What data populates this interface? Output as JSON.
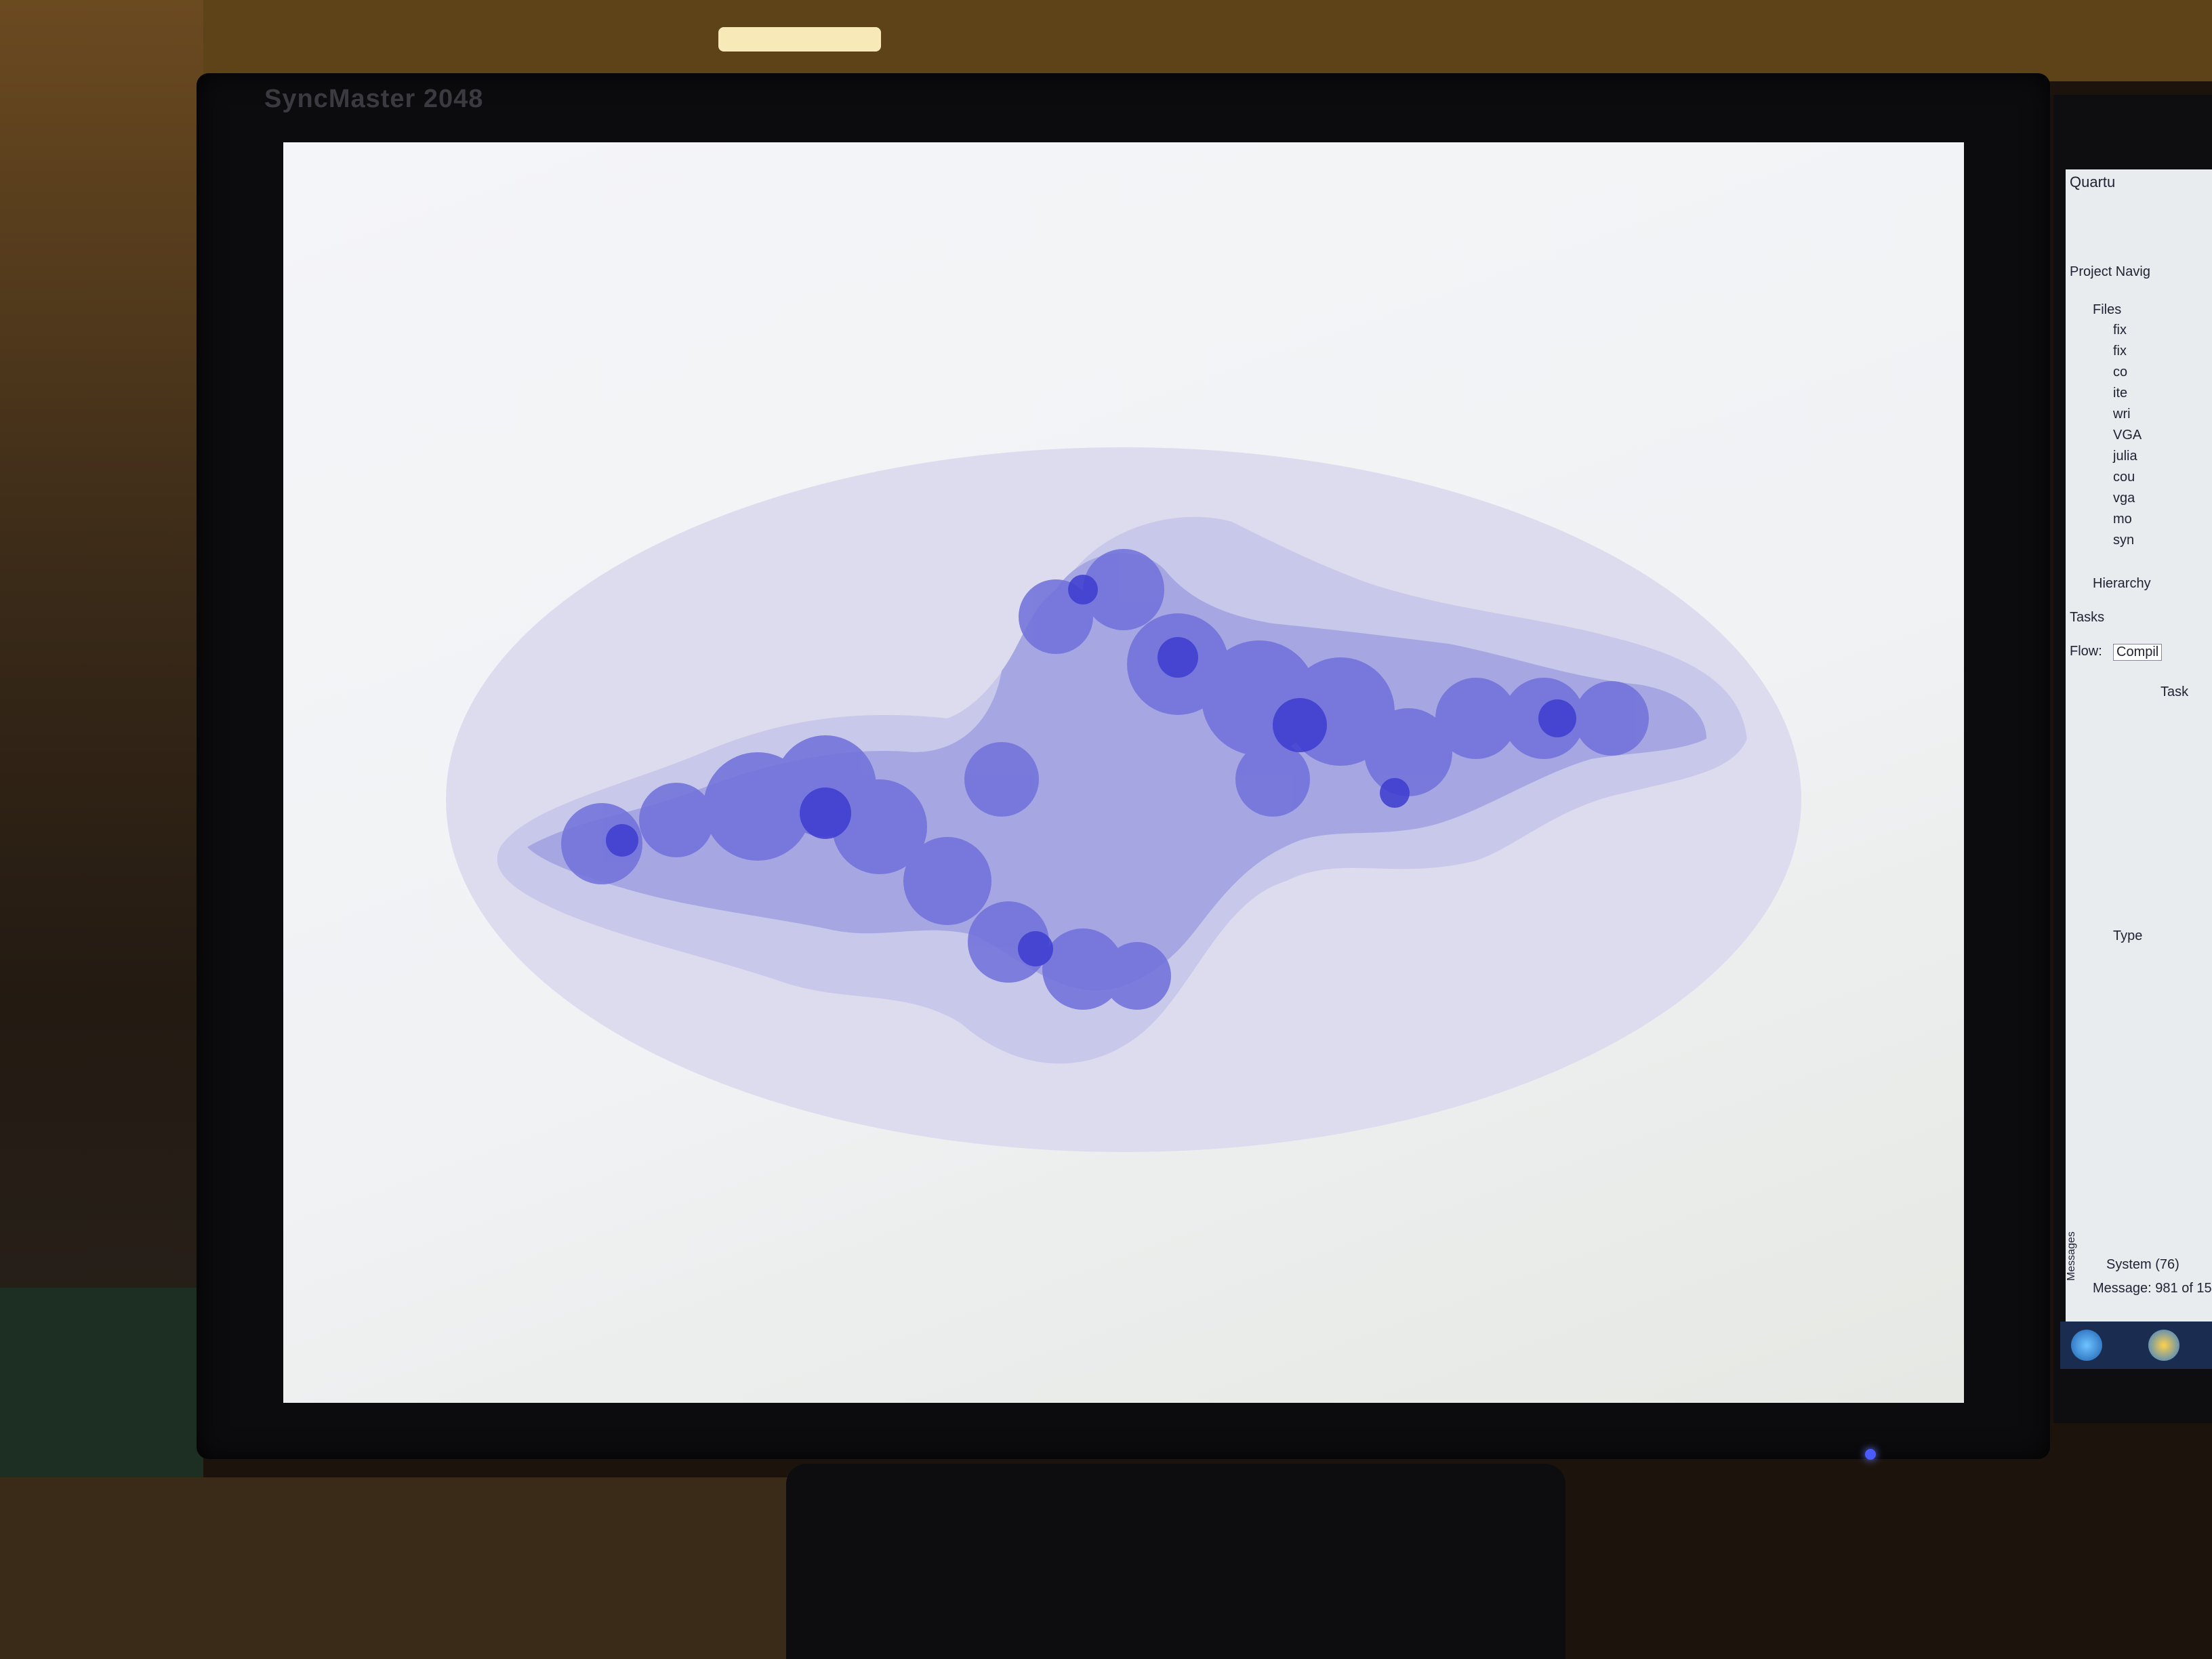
{
  "monitor": {
    "brand_label": "SyncMaster 2048"
  },
  "fractal": {
    "colors": {
      "background": "#f2f3f6",
      "level1": "#dcdcee",
      "level2": "#c8c8ea",
      "level3": "#a6a6e2",
      "level4": "#7474dc",
      "core": "#3c3cd0"
    }
  },
  "side_window": {
    "title": "Quartu",
    "project_nav": "Project Navig",
    "files_header": "Files",
    "file_items": [
      "fix",
      "fix",
      "co",
      "ite",
      "wri",
      "VGA",
      "julia",
      "cou",
      "vga",
      "mo",
      "syn"
    ],
    "hierarchy_tab": "Hierarchy",
    "tasks_label": "Tasks",
    "flow_label": "Flow:",
    "flow_value": "Compil",
    "task_header": "Task",
    "type_header": "Type",
    "system_tab": "System (76)",
    "messages_label": "Messages",
    "message_status": "Message: 981 of 15"
  }
}
